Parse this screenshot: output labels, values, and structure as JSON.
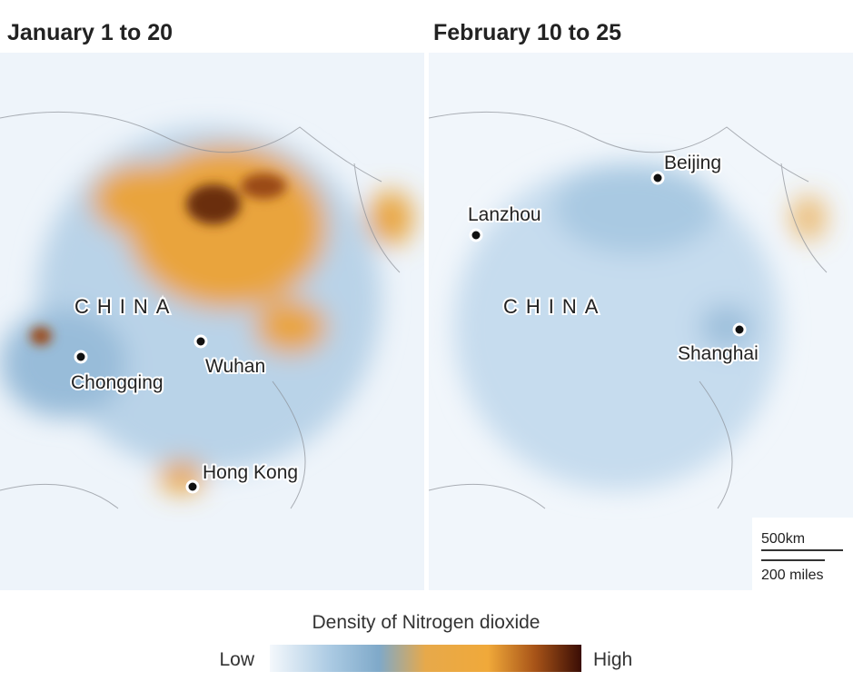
{
  "panels": [
    {
      "title": "January 1 to 20",
      "labels": [
        "CHINA",
        "Chongqing",
        "Wuhan",
        "Hong Kong"
      ]
    },
    {
      "title": "February 10 to 25",
      "labels": [
        "Beijing",
        "Lanzhou",
        "CHINA",
        "Shanghai"
      ]
    }
  ],
  "scale": {
    "km": "500km",
    "miles": "200 miles"
  },
  "legend": {
    "title": "Density of Nitrogen dioxide",
    "low": "Low",
    "high": "High"
  }
}
